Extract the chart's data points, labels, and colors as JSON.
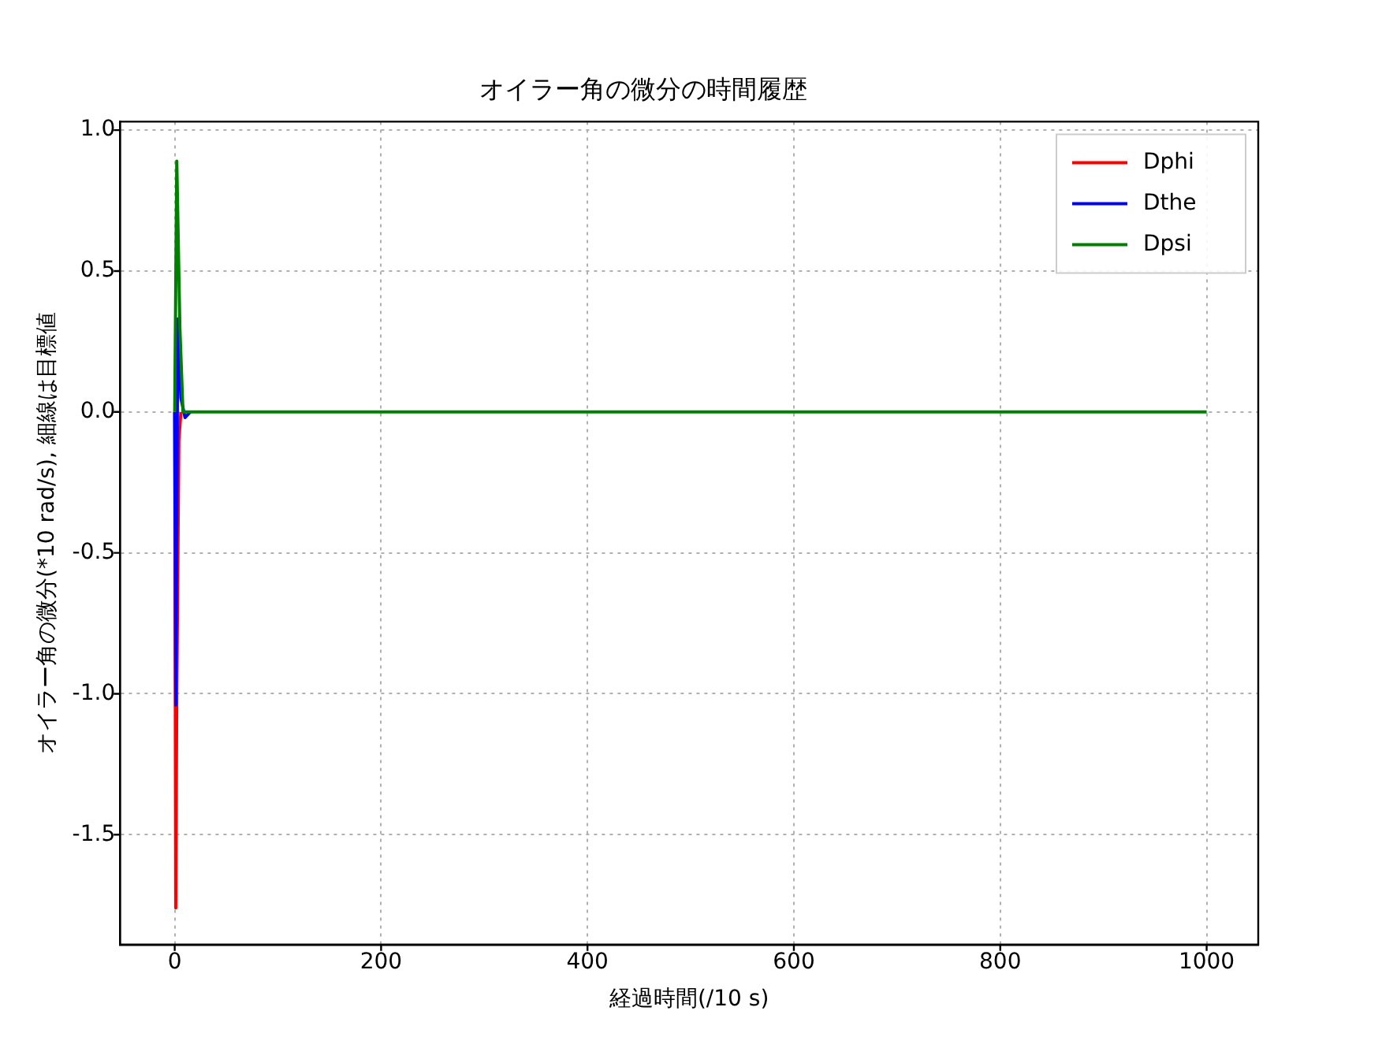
{
  "chart_data": {
    "type": "line",
    "title": "オイラー角の微分の時間履歴",
    "xlabel": "経過時間(/10 s)",
    "ylabel": "オイラー角の微分(*10 rad/s), 細線は目標値",
    "xlim": [
      -53,
      1050
    ],
    "ylim": [
      -1.89,
      1.03
    ],
    "xticks": [
      0,
      200,
      400,
      600,
      800,
      1000
    ],
    "yticks": [
      -1.5,
      {
        "value": -1,
        "label": "-1.0"
      },
      -0.5,
      {
        "value": 0,
        "label": "0.0"
      },
      0.5,
      {
        "value": 1,
        "label": "1.0"
      }
    ],
    "grid": true,
    "legend": "top right",
    "marker": "none",
    "line_style": "solid",
    "series": [
      {
        "name": "Dphi",
        "color": "#ff0000",
        "x": [
          0,
          1,
          2,
          4,
          6
        ],
        "values": [
          0,
          -1.76,
          -1.0,
          -0.1,
          0
        ]
      },
      {
        "name": "Dthe",
        "color": "#0000ff",
        "x": [
          0,
          1,
          3,
          6,
          10,
          15
        ],
        "values": [
          0,
          -1.04,
          0.33,
          0.05,
          -0.02,
          0
        ]
      },
      {
        "name": "Dpsi",
        "color": "#008000",
        "x": [
          0,
          2,
          5,
          8,
          12,
          1000
        ],
        "values": [
          0,
          0.89,
          0.3,
          0,
          0,
          0
        ]
      }
    ]
  }
}
